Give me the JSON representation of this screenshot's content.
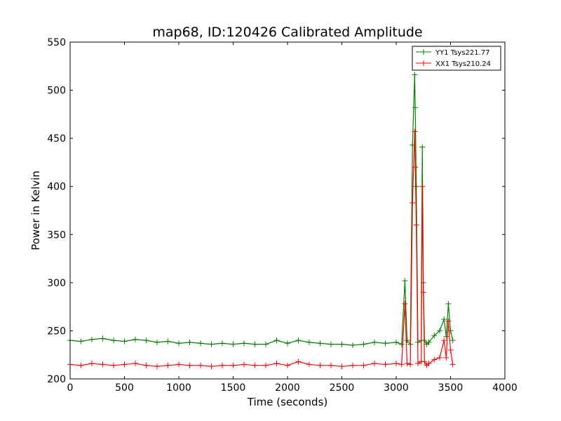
{
  "chart_data": {
    "type": "line",
    "title": "map68, ID:120426 Calibrated Amplitude",
    "xlabel": "Time (seconds)",
    "ylabel": "Power in Kelvin",
    "xlim": [
      0,
      4000
    ],
    "ylim": [
      200,
      550
    ],
    "xticks": [
      "0",
      "500",
      "1000",
      "1500",
      "2000",
      "2500",
      "3000",
      "3500",
      "4000"
    ],
    "yticks": [
      "200",
      "250",
      "300",
      "350",
      "400",
      "450",
      "500",
      "550"
    ],
    "grid": false,
    "legend_position": "top-right",
    "marker": "+",
    "series": [
      {
        "name": "YY1 Tsys221.77",
        "color": "#008000",
        "x": [
          0,
          100,
          200,
          300,
          400,
          500,
          600,
          700,
          800,
          900,
          1000,
          1100,
          1200,
          1300,
          1400,
          1500,
          1600,
          1700,
          1800,
          1900,
          2000,
          2100,
          2200,
          2300,
          2400,
          2500,
          2600,
          2700,
          2800,
          2900,
          3000,
          3050,
          3080,
          3100,
          3130,
          3150,
          3170,
          3175,
          3185,
          3200,
          3230,
          3240,
          3250,
          3260,
          3280,
          3300,
          3350,
          3400,
          3440,
          3460,
          3480,
          3500,
          3520
        ],
        "y": [
          240,
          239,
          241,
          242,
          240,
          239,
          241,
          240,
          238,
          239,
          237,
          238,
          237,
          236,
          237,
          236,
          237,
          236,
          236,
          240,
          237,
          240,
          238,
          237,
          236,
          236,
          235,
          236,
          238,
          237,
          238,
          236,
          302,
          240,
          236,
          443,
          516,
          482,
          400,
          238,
          240,
          441,
          300,
          240,
          236,
          238,
          245,
          250,
          262,
          244,
          278,
          250,
          240
        ]
      },
      {
        "name": "XX1 Tsys210.24",
        "color": "#ff0000",
        "x": [
          0,
          100,
          200,
          300,
          400,
          500,
          600,
          700,
          800,
          900,
          1000,
          1100,
          1200,
          1300,
          1400,
          1500,
          1600,
          1700,
          1800,
          1900,
          2000,
          2100,
          2200,
          2300,
          2400,
          2500,
          2600,
          2700,
          2800,
          2900,
          3000,
          3050,
          3080,
          3100,
          3130,
          3150,
          3170,
          3175,
          3185,
          3200,
          3230,
          3240,
          3250,
          3260,
          3280,
          3300,
          3350,
          3400,
          3440,
          3460,
          3480,
          3500,
          3520
        ],
        "y": [
          215,
          214,
          216,
          215,
          214,
          215,
          216,
          214,
          213,
          214,
          215,
          214,
          214,
          213,
          214,
          214,
          215,
          214,
          214,
          216,
          214,
          218,
          215,
          214,
          214,
          213,
          214,
          214,
          216,
          215,
          216,
          215,
          278,
          216,
          215,
          383,
          457,
          420,
          360,
          216,
          218,
          400,
          290,
          218,
          214,
          216,
          220,
          222,
          240,
          222,
          260,
          230,
          215
        ]
      }
    ]
  }
}
